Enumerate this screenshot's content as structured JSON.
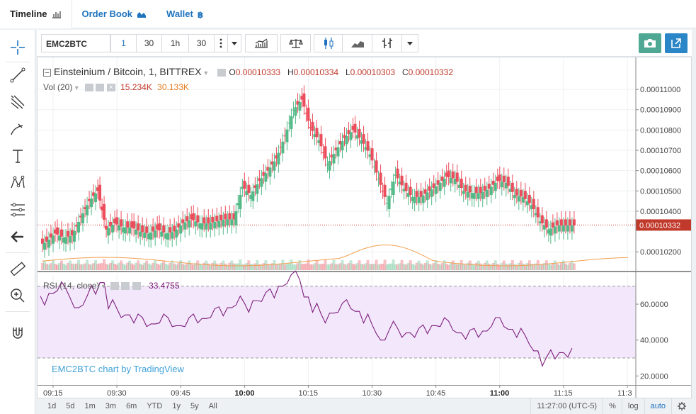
{
  "nav": {
    "tabs": [
      {
        "label": "Timeline",
        "icon": "bar-chart-icon"
      },
      {
        "label": "Order Book",
        "icon": "depth-chart-icon"
      },
      {
        "label": "Wallet",
        "icon": "bitcoin-icon"
      }
    ]
  },
  "toolbar": {
    "symbol": "EMC2BTC",
    "intervals": [
      "1",
      "30",
      "1h",
      "30"
    ],
    "more_icon": "vertical-dots-icon",
    "dropdown_icon": "chevron-down-icon",
    "indicators_icon": "indicators-icon",
    "compare_icon": "scales-icon",
    "candles_icon": "candles-icon",
    "area_icon": "area-chart-icon",
    "bars_icon": "bars-icon",
    "snapshot_icon": "camera-icon",
    "popout_icon": "popout-icon"
  },
  "colors": {
    "up": "#53b987",
    "down": "#eb4d5c",
    "rsi": "#7d1e7d",
    "rsi_band": "#f3e8fb",
    "vol_ma": "#f0a050",
    "price_line": "#c0392b",
    "snapshot": "#4ea893",
    "popout": "#2a86c6",
    "accent": "#1e73be"
  },
  "legend": {
    "title": "Einsteinium / Bitcoin, 1, BITTREX",
    "o_label": "O",
    "o_value": "0.00010333",
    "h_label": "H",
    "h_value": "0.00010334",
    "l_label": "L",
    "l_value": "0.00010303",
    "c_label": "C",
    "c_value": "0.00010332",
    "vol_label": "Vol (20)",
    "vol_value": "15.234K",
    "vol_ma_value": "30.133K",
    "rsi_label": "RSI (14, close)",
    "rsi_value": "33.4755"
  },
  "watermark": "EMC2BTC chart by TradingView",
  "bottom": {
    "timeframes": [
      "1d",
      "5d",
      "1m",
      "3m",
      "6m",
      "YTD",
      "1y",
      "5y",
      "All"
    ],
    "clock": "11:27:00 (UTC-5)",
    "percent": "%",
    "log": "log",
    "auto": "auto",
    "settings_icon": "gear-icon"
  },
  "chart_data": [
    {
      "type": "candlestick",
      "title": "Einsteinium / Bitcoin, 1, BITTREX",
      "x_ticks": [
        "09:15",
        "09:30",
        "09:45",
        "10:00",
        "10:15",
        "10:30",
        "10:45",
        "11:00",
        "11:15",
        "11:3"
      ],
      "y_ticks": [
        "0.00011000",
        "0.00010900",
        "0.00010800",
        "0.00010700",
        "0.00010600",
        "0.00010500",
        "0.00010400",
        "0.00010332",
        "0.00010200"
      ],
      "last_price": "0.00010332",
      "ylim": [
        0.0001011,
        0.0001114
      ],
      "series": [
        {
          "name": "close",
          "x_time_minutes_from_0900": [
            13,
            15,
            17,
            19,
            21,
            23,
            25,
            27,
            29,
            31,
            33,
            35,
            37,
            39,
            41,
            43,
            45,
            47,
            49,
            51,
            53,
            55,
            57,
            59,
            61,
            63,
            65,
            67,
            69,
            71,
            73,
            75,
            77,
            79,
            81,
            83,
            85,
            87,
            89,
            91,
            93,
            95,
            97,
            99,
            101,
            103,
            105,
            107,
            109,
            111,
            113,
            115,
            117,
            119,
            121,
            123,
            125,
            127,
            129,
            131,
            133,
            135,
            137
          ],
          "values": [
            0.0001025,
            0.0001029,
            0.0001027,
            0.0001028,
            0.0001037,
            0.0001045,
            0.000105,
            0.0001031,
            0.0001034,
            0.0001032,
            0.0001032,
            0.000103,
            0.0001029,
            0.0001031,
            0.0001029,
            0.000103,
            0.0001034,
            0.0001036,
            0.0001034,
            0.0001034,
            0.0001035,
            0.0001036,
            0.0001036,
            0.0001052,
            0.0001048,
            0.0001055,
            0.000106,
            0.0001066,
            0.0001077,
            0.000109,
            0.0001095,
            0.0001081,
            0.0001075,
            0.0001063,
            0.000107,
            0.0001076,
            0.000108,
            0.0001075,
            0.0001068,
            0.0001056,
            0.0001044,
            0.0001058,
            0.0001051,
            0.0001047,
            0.0001047,
            0.000105,
            0.0001053,
            0.0001057,
            0.0001056,
            0.000105,
            0.0001049,
            0.0001049,
            0.0001051,
            0.0001055,
            0.0001054,
            0.0001048,
            0.0001047,
            0.0001043,
            0.0001035,
            0.0001031,
            0.0001033,
            0.0001033,
            0.0001033
          ]
        }
      ]
    },
    {
      "type": "line",
      "title": "RSI (14, close)",
      "y_ticks": [
        "60.0000",
        "40.0000",
        "20.0000"
      ],
      "ylim": [
        15,
        77
      ],
      "bands": [
        30,
        70
      ],
      "series": [
        {
          "name": "RSI",
          "values": [
            62,
            66,
            70,
            66,
            58,
            62,
            68,
            72,
            60,
            55,
            54,
            52,
            50,
            49,
            52,
            50,
            48,
            50,
            52,
            52,
            55,
            56,
            58,
            62,
            58,
            62,
            64,
            66,
            70,
            74,
            76,
            64,
            58,
            52,
            55,
            58,
            60,
            56,
            52,
            46,
            40,
            48,
            44,
            44,
            44,
            46,
            48,
            50,
            48,
            44,
            43,
            44,
            45,
            50,
            50,
            46,
            44,
            40,
            34,
            28,
            32,
            33,
            33
          ]
        }
      ]
    }
  ]
}
